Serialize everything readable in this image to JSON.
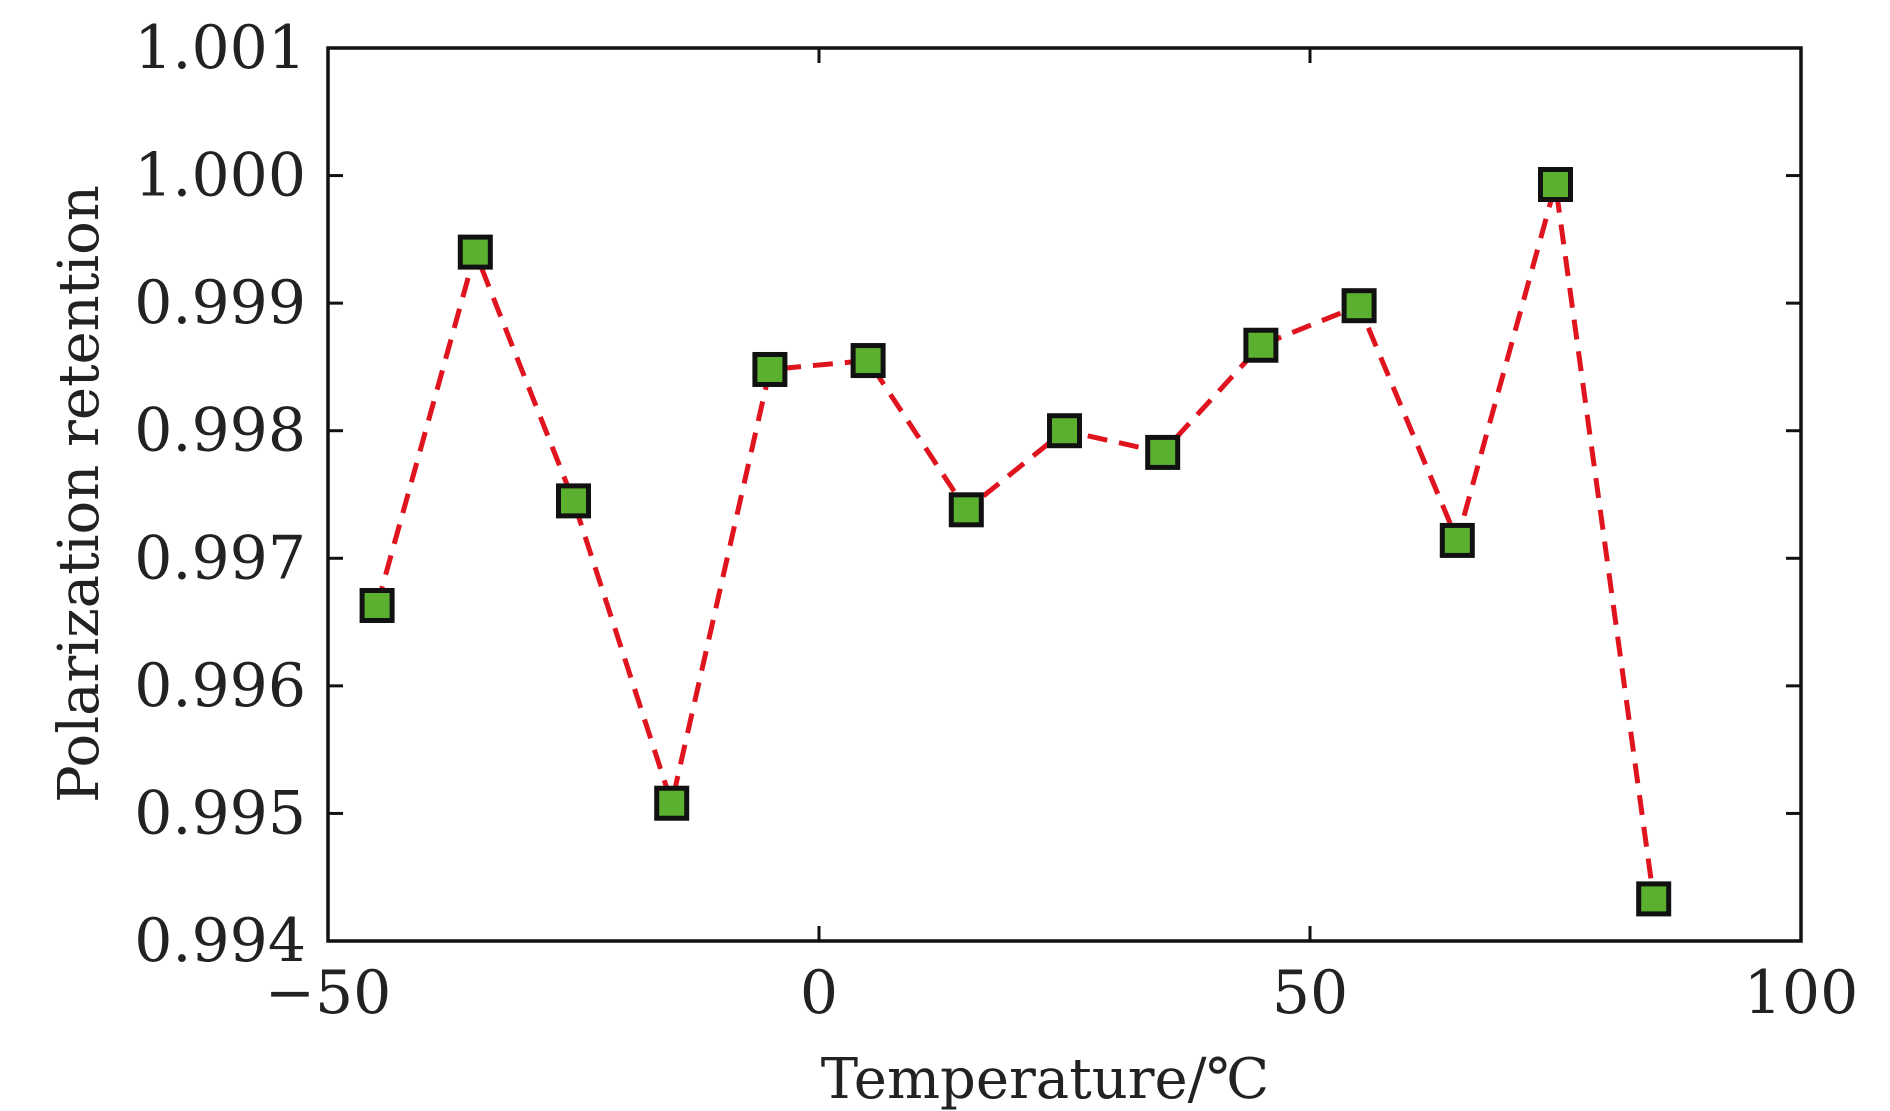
{
  "chart_data": {
    "type": "line",
    "title": "",
    "xlabel": "Temperature/℃",
    "ylabel": "Polarization retention",
    "xlim": [
      -50,
      100
    ],
    "ylim": [
      0.994,
      1.001
    ],
    "xticks": [
      -50,
      0,
      50,
      100
    ],
    "xtick_labels": [
      "−50",
      "0",
      "50",
      "100"
    ],
    "yticks": [
      0.994,
      0.995,
      0.996,
      0.997,
      0.998,
      0.999,
      1.0,
      1.001
    ],
    "ytick_labels": [
      "0.994",
      "0.995",
      "0.996",
      "0.997",
      "0.998",
      "0.999",
      "1.000",
      "1.001"
    ],
    "grid": false,
    "series": [
      {
        "line_color": "#e0141e",
        "line_style": "dashed",
        "marker": "square",
        "marker_fill": "#5bb030",
        "marker_edge": "#111111",
        "x": [
          -45,
          -35,
          -25,
          -15,
          -5,
          5,
          15,
          25,
          35,
          45,
          55,
          65,
          75,
          85
        ],
        "y": [
          0.99663,
          0.9994,
          0.99745,
          0.99508,
          0.99848,
          0.99855,
          0.99738,
          0.998,
          0.99783,
          0.99867,
          0.99898,
          0.99714,
          0.99993,
          0.99433
        ]
      }
    ]
  }
}
